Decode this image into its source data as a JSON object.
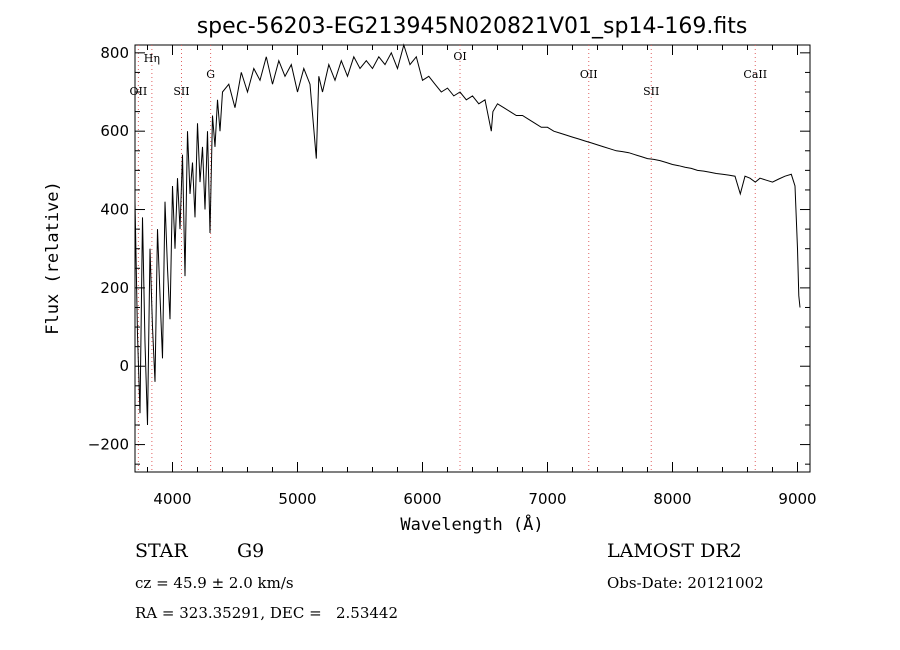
{
  "chart_data": {
    "type": "line",
    "title": "spec-56203-EG213945N020821V01_sp14-169.fits",
    "xlabel": "Wavelength (Å)",
    "ylabel": "Flux (relative)",
    "xlim": [
      3700,
      9100
    ],
    "ylim": [
      -270,
      820
    ],
    "xticks": [
      "4000",
      "5000",
      "6000",
      "7000",
      "8000",
      "9000"
    ],
    "yticks": [
      "−200",
      "0",
      "200",
      "400",
      "600",
      "800"
    ],
    "grid": false,
    "series": [
      {
        "x": [
          3700,
          3720,
          3740,
          3760,
          3780,
          3800,
          3820,
          3840,
          3860,
          3880,
          3900,
          3920,
          3940,
          3960,
          3980,
          4000,
          4020,
          4040,
          4060,
          4080,
          4100,
          4120,
          4140,
          4160,
          4180,
          4200,
          4220,
          4240,
          4260,
          4280,
          4300,
          4320,
          4340,
          4360,
          4380,
          4400,
          4450,
          4500,
          4550,
          4600,
          4650,
          4700,
          4750,
          4800,
          4850,
          4900,
          4950,
          5000,
          5050,
          5100,
          5150,
          5170,
          5200,
          5250,
          5300,
          5350,
          5400,
          5450,
          5500,
          5550,
          5600,
          5650,
          5700,
          5750,
          5800,
          5850,
          5900,
          5950,
          6000,
          6050,
          6100,
          6150,
          6200,
          6250,
          6300,
          6350,
          6400,
          6450,
          6500,
          6550,
          6563,
          6600,
          6650,
          6700,
          6750,
          6800,
          6850,
          6900,
          6950,
          7000,
          7050,
          7100,
          7150,
          7200,
          7250,
          7300,
          7350,
          7400,
          7450,
          7500,
          7550,
          7600,
          7650,
          7700,
          7750,
          7800,
          7850,
          7900,
          7950,
          8000,
          8050,
          8100,
          8150,
          8200,
          8250,
          8300,
          8350,
          8400,
          8450,
          8500,
          8542,
          8580,
          8620,
          8662,
          8700,
          8750,
          8800,
          8850,
          8900,
          8950,
          8980,
          9000,
          9010,
          9020
        ],
        "values": [
          420,
          80,
          -120,
          380,
          60,
          -150,
          300,
          100,
          -40,
          350,
          180,
          20,
          420,
          250,
          120,
          460,
          300,
          480,
          350,
          540,
          230,
          600,
          440,
          520,
          380,
          620,
          470,
          560,
          400,
          600,
          340,
          640,
          560,
          680,
          600,
          700,
          720,
          660,
          750,
          700,
          760,
          730,
          790,
          720,
          780,
          740,
          770,
          700,
          760,
          720,
          530,
          740,
          700,
          770,
          730,
          780,
          740,
          790,
          760,
          780,
          760,
          790,
          770,
          800,
          760,
          820,
          770,
          790,
          730,
          740,
          720,
          700,
          710,
          690,
          700,
          680,
          690,
          670,
          680,
          600,
          650,
          670,
          660,
          650,
          640,
          640,
          630,
          620,
          610,
          610,
          600,
          595,
          590,
          585,
          580,
          575,
          570,
          565,
          560,
          555,
          550,
          548,
          545,
          540,
          535,
          530,
          528,
          525,
          520,
          515,
          512,
          508,
          505,
          500,
          498,
          495,
          492,
          490,
          488,
          485,
          440,
          485,
          480,
          470,
          480,
          475,
          470,
          478,
          485,
          490,
          460,
          300,
          180,
          150
        ]
      }
    ],
    "lines": [
      {
        "label": "OII",
        "x": 3727
      },
      {
        "label": "Hη",
        "x": 3835
      },
      {
        "label": "SII",
        "x": 4072
      },
      {
        "label": "G",
        "x": 4305
      },
      {
        "label": "OI",
        "x": 6300
      },
      {
        "label": "OII",
        "x": 7330
      },
      {
        "label": "SII",
        "x": 7830
      },
      {
        "label": "CaII",
        "x": 8662
      }
    ]
  },
  "info": {
    "class": "STAR",
    "subclass": "G9",
    "cz": "cz = 45.9 ± 2.0 km/s",
    "coords": "RA = 323.35291, DEC =   2.53442",
    "survey": "LAMOST DR2",
    "obsdate": "Obs-Date: 20121002"
  }
}
